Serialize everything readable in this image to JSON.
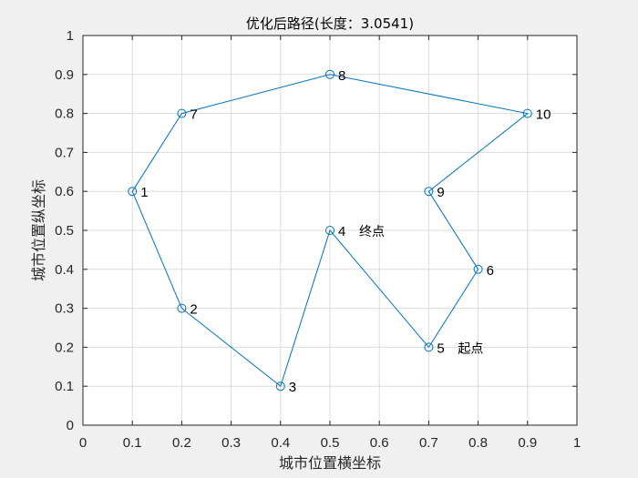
{
  "chart_data": {
    "type": "line",
    "title": "优化后路径(长度：3.0541)",
    "xlabel": "城市位置横坐标",
    "ylabel": "城市位置纵坐标",
    "xlim": [
      0,
      1
    ],
    "ylim": [
      0,
      1
    ],
    "xticks": [
      "0",
      "0.1",
      "0.2",
      "0.3",
      "0.4",
      "0.5",
      "0.6",
      "0.7",
      "0.8",
      "0.9",
      "1"
    ],
    "yticks": [
      "0",
      "0.1",
      "0.2",
      "0.3",
      "0.4",
      "0.5",
      "0.6",
      "0.7",
      "0.8",
      "0.9",
      "1"
    ],
    "grid": true,
    "line_color": "#0072BD",
    "cities": [
      {
        "label": "1",
        "x": 0.1,
        "y": 0.6
      },
      {
        "label": "2",
        "x": 0.2,
        "y": 0.3
      },
      {
        "label": "3",
        "x": 0.4,
        "y": 0.1
      },
      {
        "label": "4",
        "x": 0.5,
        "y": 0.5
      },
      {
        "label": "5",
        "x": 0.7,
        "y": 0.2
      },
      {
        "label": "6",
        "x": 0.8,
        "y": 0.4
      },
      {
        "label": "7",
        "x": 0.2,
        "y": 0.8
      },
      {
        "label": "8",
        "x": 0.5,
        "y": 0.9
      },
      {
        "label": "9",
        "x": 0.7,
        "y": 0.6
      },
      {
        "label": "10",
        "x": 0.9,
        "y": 0.8
      }
    ],
    "route": [
      "5",
      "6",
      "9",
      "10",
      "8",
      "7",
      "1",
      "2",
      "3",
      "4",
      "5"
    ],
    "annotations": [
      {
        "text": "起点",
        "city": "5"
      },
      {
        "text": "终点",
        "city": "4"
      }
    ]
  }
}
